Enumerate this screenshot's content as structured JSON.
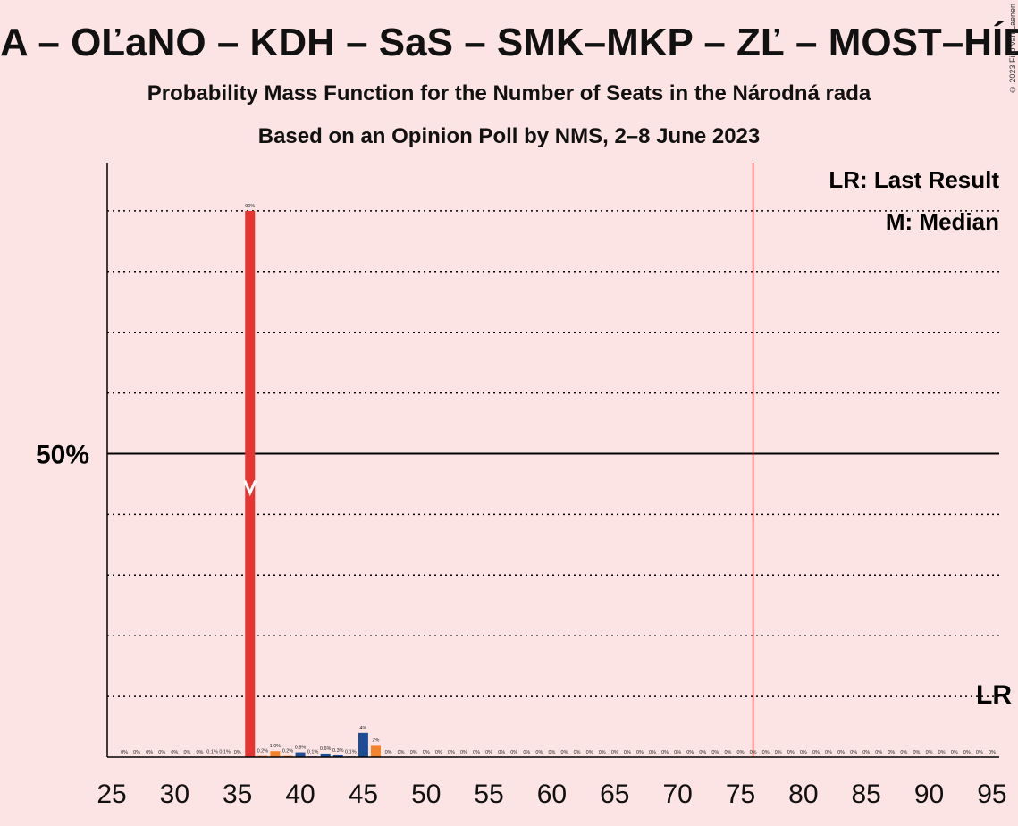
{
  "title": "A – OĽaNO – KDH – SaS – SMK–MKP – ZĽ – MOST–HÍD",
  "subtitle": "Probability Mass Function for the Number of Seats in the Národná rada",
  "subtitle2": "Based on an Opinion Poll by NMS, 2–8 June 2023",
  "copyright": "© 2023 Filip van Laenen",
  "legend": {
    "lr": "LR: Last Result",
    "m": "M: Median"
  },
  "lr_marker_label": "LR",
  "median_marker_label": "M",
  "colors": {
    "background": "#fde4e4",
    "red": "#e53530",
    "orange": "#f4822a",
    "blue": "#1c4c94",
    "majority_line": "#e53530"
  },
  "chart_data": {
    "type": "bar",
    "x_range": [
      25,
      95
    ],
    "x_ticks": [
      25,
      30,
      35,
      40,
      45,
      50,
      55,
      60,
      65,
      70,
      75,
      80,
      85,
      90,
      95
    ],
    "y_range": [
      0,
      100
    ],
    "y_tick_label": {
      "value": 50,
      "label": "50%"
    },
    "gridlines": [
      10,
      20,
      30,
      40,
      60,
      70,
      80,
      90
    ],
    "majority_line_x": 76,
    "last_result_x": 95,
    "median_x": 36,
    "bars": [
      {
        "x": 26,
        "value": 0,
        "label": "0%",
        "color": "orange"
      },
      {
        "x": 27,
        "value": 0,
        "label": "0%",
        "color": "orange"
      },
      {
        "x": 28,
        "value": 0,
        "label": "0%",
        "color": "orange"
      },
      {
        "x": 29,
        "value": 0,
        "label": "0%",
        "color": "orange"
      },
      {
        "x": 30,
        "value": 0,
        "label": "0%",
        "color": "orange"
      },
      {
        "x": 31,
        "value": 0,
        "label": "0%",
        "color": "orange"
      },
      {
        "x": 32,
        "value": 0,
        "label": "0%",
        "color": "orange"
      },
      {
        "x": 33,
        "value": 0.1,
        "label": "0.1%",
        "color": "orange"
      },
      {
        "x": 34,
        "value": 0.1,
        "label": "0.1%",
        "color": "orange"
      },
      {
        "x": 35,
        "value": 0,
        "label": "0%",
        "color": "orange"
      },
      {
        "x": 36,
        "value": 90,
        "label": "90%",
        "color": "red"
      },
      {
        "x": 37,
        "value": 0.2,
        "label": "0.2%",
        "color": "orange"
      },
      {
        "x": 38,
        "value": 1.0,
        "label": "1.0%",
        "color": "orange"
      },
      {
        "x": 39,
        "value": 0.2,
        "label": "0.2%",
        "color": "orange"
      },
      {
        "x": 40,
        "value": 0.8,
        "label": "0.8%",
        "color": "blue"
      },
      {
        "x": 41,
        "value": 0.1,
        "label": "0.1%",
        "color": "blue"
      },
      {
        "x": 42,
        "value": 0.6,
        "label": "0.6%",
        "color": "blue"
      },
      {
        "x": 43,
        "value": 0.3,
        "label": "0.3%",
        "color": "blue"
      },
      {
        "x": 44,
        "value": 0.1,
        "label": "0.1%",
        "color": "blue"
      },
      {
        "x": 45,
        "value": 4,
        "label": "4%",
        "color": "blue"
      },
      {
        "x": 46,
        "value": 2,
        "label": "2%",
        "color": "orange"
      },
      {
        "x": 47,
        "value": 0,
        "label": "0%",
        "color": "orange"
      },
      {
        "x": 48,
        "value": 0,
        "label": "0%",
        "color": "orange"
      },
      {
        "x": 49,
        "value": 0,
        "label": "0%",
        "color": "orange"
      },
      {
        "x": 50,
        "value": 0,
        "label": "0%",
        "color": "orange"
      },
      {
        "x": 51,
        "value": 0,
        "label": "0%",
        "color": "orange"
      },
      {
        "x": 52,
        "value": 0,
        "label": "0%",
        "color": "orange"
      },
      {
        "x": 53,
        "value": 0,
        "label": "0%",
        "color": "orange"
      },
      {
        "x": 54,
        "value": 0,
        "label": "0%",
        "color": "orange"
      },
      {
        "x": 55,
        "value": 0,
        "label": "0%",
        "color": "orange"
      },
      {
        "x": 56,
        "value": 0,
        "label": "0%",
        "color": "orange"
      },
      {
        "x": 57,
        "value": 0,
        "label": "0%",
        "color": "orange"
      },
      {
        "x": 58,
        "value": 0,
        "label": "0%",
        "color": "orange"
      },
      {
        "x": 59,
        "value": 0,
        "label": "0%",
        "color": "orange"
      },
      {
        "x": 60,
        "value": 0,
        "label": "0%",
        "color": "orange"
      },
      {
        "x": 61,
        "value": 0,
        "label": "0%",
        "color": "orange"
      },
      {
        "x": 62,
        "value": 0,
        "label": "0%",
        "color": "orange"
      },
      {
        "x": 63,
        "value": 0,
        "label": "0%",
        "color": "orange"
      },
      {
        "x": 64,
        "value": 0,
        "label": "0%",
        "color": "orange"
      },
      {
        "x": 65,
        "value": 0,
        "label": "0%",
        "color": "orange"
      },
      {
        "x": 66,
        "value": 0,
        "label": "0%",
        "color": "orange"
      },
      {
        "x": 67,
        "value": 0,
        "label": "0%",
        "color": "orange"
      },
      {
        "x": 68,
        "value": 0,
        "label": "0%",
        "color": "orange"
      },
      {
        "x": 69,
        "value": 0,
        "label": "0%",
        "color": "orange"
      },
      {
        "x": 70,
        "value": 0,
        "label": "0%",
        "color": "orange"
      },
      {
        "x": 71,
        "value": 0,
        "label": "0%",
        "color": "orange"
      },
      {
        "x": 72,
        "value": 0,
        "label": "0%",
        "color": "orange"
      },
      {
        "x": 73,
        "value": 0,
        "label": "0%",
        "color": "orange"
      },
      {
        "x": 74,
        "value": 0,
        "label": "0%",
        "color": "orange"
      },
      {
        "x": 75,
        "value": 0,
        "label": "0%",
        "color": "orange"
      },
      {
        "x": 76,
        "value": 0,
        "label": "0%",
        "color": "orange"
      },
      {
        "x": 77,
        "value": 0,
        "label": "0%",
        "color": "orange"
      },
      {
        "x": 78,
        "value": 0,
        "label": "0%",
        "color": "orange"
      },
      {
        "x": 79,
        "value": 0,
        "label": "0%",
        "color": "orange"
      },
      {
        "x": 80,
        "value": 0,
        "label": "0%",
        "color": "orange"
      },
      {
        "x": 81,
        "value": 0,
        "label": "0%",
        "color": "orange"
      },
      {
        "x": 82,
        "value": 0,
        "label": "0%",
        "color": "orange"
      },
      {
        "x": 83,
        "value": 0,
        "label": "0%",
        "color": "orange"
      },
      {
        "x": 84,
        "value": 0,
        "label": "0%",
        "color": "orange"
      },
      {
        "x": 85,
        "value": 0,
        "label": "0%",
        "color": "orange"
      },
      {
        "x": 86,
        "value": 0,
        "label": "0%",
        "color": "orange"
      },
      {
        "x": 87,
        "value": 0,
        "label": "0%",
        "color": "orange"
      },
      {
        "x": 88,
        "value": 0,
        "label": "0%",
        "color": "orange"
      },
      {
        "x": 89,
        "value": 0,
        "label": "0%",
        "color": "orange"
      },
      {
        "x": 90,
        "value": 0,
        "label": "0%",
        "color": "orange"
      },
      {
        "x": 91,
        "value": 0,
        "label": "0%",
        "color": "orange"
      },
      {
        "x": 92,
        "value": 0,
        "label": "0%",
        "color": "orange"
      },
      {
        "x": 93,
        "value": 0,
        "label": "0%",
        "color": "orange"
      },
      {
        "x": 94,
        "value": 0,
        "label": "0%",
        "color": "orange"
      },
      {
        "x": 95,
        "value": 0,
        "label": "0%",
        "color": "orange"
      }
    ]
  }
}
